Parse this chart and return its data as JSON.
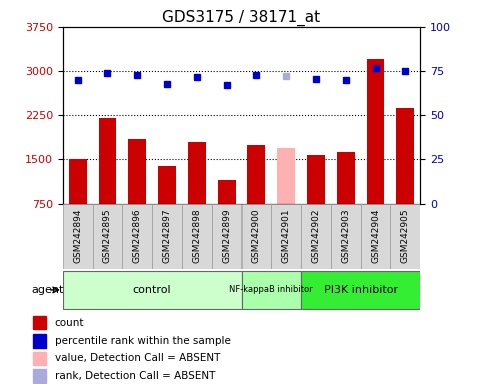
{
  "title": "GDS3175 / 38171_at",
  "samples": [
    "GSM242894",
    "GSM242895",
    "GSM242896",
    "GSM242897",
    "GSM242898",
    "GSM242899",
    "GSM242900",
    "GSM242901",
    "GSM242902",
    "GSM242903",
    "GSM242904",
    "GSM242905"
  ],
  "bar_values": [
    1500,
    2200,
    1850,
    1380,
    1800,
    1150,
    1750,
    1700,
    1580,
    1620,
    3200,
    2380
  ],
  "bar_colors": [
    "#cc0000",
    "#cc0000",
    "#cc0000",
    "#cc0000",
    "#cc0000",
    "#cc0000",
    "#cc0000",
    "#ffb0b0",
    "#cc0000",
    "#cc0000",
    "#cc0000",
    "#cc0000"
  ],
  "dot_values": [
    2840,
    2960,
    2940,
    2780,
    2900,
    2770,
    2930,
    2920,
    2860,
    2850,
    3060,
    3000
  ],
  "dot_colors": [
    "#0000cc",
    "#0000cc",
    "#0000cc",
    "#0000cc",
    "#0000cc",
    "#0000cc",
    "#0000cc",
    "#aaaadd",
    "#0000cc",
    "#0000cc",
    "#0000cc",
    "#0000cc"
  ],
  "ylim_left": [
    750,
    3750
  ],
  "ylim_right": [
    0,
    100
  ],
  "yticks_left": [
    750,
    1500,
    2250,
    3000,
    3750
  ],
  "yticks_right": [
    0,
    25,
    50,
    75,
    100
  ],
  "hgrid_vals": [
    1500,
    2250,
    3000
  ],
  "groups_def": [
    {
      "label": "control",
      "start": 0,
      "end": 5,
      "color": "#ccffcc",
      "fontsize": 8
    },
    {
      "label": "NF-kappaB inhibitor",
      "start": 6,
      "end": 7,
      "color": "#aaffaa",
      "fontsize": 6
    },
    {
      "label": "PI3K inhibitor",
      "start": 8,
      "end": 11,
      "color": "#33ee33",
      "fontsize": 8
    }
  ],
  "legend_items": [
    {
      "label": "count",
      "color": "#cc0000"
    },
    {
      "label": "percentile rank within the sample",
      "color": "#0000cc"
    },
    {
      "label": "value, Detection Call = ABSENT",
      "color": "#ffb0b0"
    },
    {
      "label": "rank, Detection Call = ABSENT",
      "color": "#aaaadd"
    }
  ],
  "background_color": "#ffffff",
  "title_fontsize": 11,
  "tick_label_color_left": "#cc0000",
  "tick_label_color_right": "#0000bb",
  "bar_width": 0.6,
  "label_box_color": "#d8d8d8",
  "label_box_edge": "#999999"
}
